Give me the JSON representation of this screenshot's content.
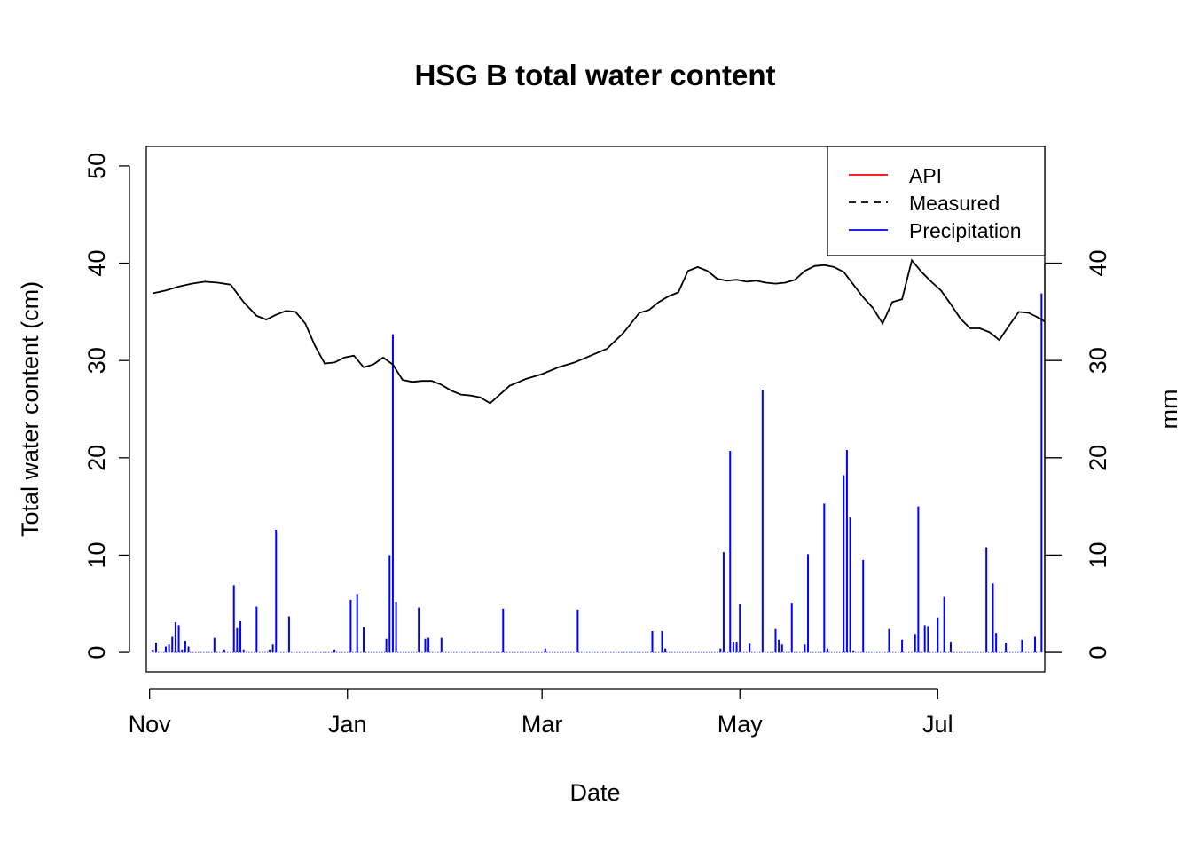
{
  "chart_data": {
    "type": "line",
    "title": "HSG B total water content",
    "xlabel": "Date",
    "ylabel": "Total water content (cm)",
    "y2label": "mm",
    "x_range": [
      "2019-10-31",
      "2020-08-03"
    ],
    "x_ticks": [
      {
        "label": "Nov",
        "date": "2019-11-01"
      },
      {
        "label": "Jan",
        "date": "2020-01-01"
      },
      {
        "label": "Mar",
        "date": "2020-03-01"
      },
      {
        "label": "May",
        "date": "2020-05-01"
      },
      {
        "label": "Jul",
        "date": "2020-07-01"
      }
    ],
    "ylim": [
      -2,
      52
    ],
    "y_ticks": [
      0,
      10,
      20,
      30,
      40,
      50
    ],
    "y2lim": [
      -2,
      52
    ],
    "y2_ticks": [
      0,
      10,
      20,
      30,
      40
    ],
    "grid": false,
    "legend": {
      "position": "top-right",
      "entries": [
        {
          "label": "API",
          "color": "#ff0000",
          "style": "solid"
        },
        {
          "label": "Measured",
          "color": "#000000",
          "style": "dashed"
        },
        {
          "label": "Precipitation",
          "color": "#0000ff",
          "style": "solid"
        }
      ]
    },
    "series": [
      {
        "name": "Measured",
        "axis": "left",
        "color": "#000000",
        "x": [
          "2019-11-02",
          "2019-11-06",
          "2019-11-10",
          "2019-11-14",
          "2019-11-18",
          "2019-11-22",
          "2019-11-26",
          "2019-11-30",
          "2019-12-04",
          "2019-12-07",
          "2019-12-10",
          "2019-12-13",
          "2019-12-16",
          "2019-12-19",
          "2019-12-22",
          "2019-12-25",
          "2019-12-28",
          "2019-12-31",
          "2020-01-03",
          "2020-01-06",
          "2020-01-09",
          "2020-01-12",
          "2020-01-15",
          "2020-01-18",
          "2020-01-21",
          "2020-01-24",
          "2020-01-27",
          "2020-01-30",
          "2020-02-02",
          "2020-02-05",
          "2020-02-08",
          "2020-02-11",
          "2020-02-14",
          "2020-02-17",
          "2020-02-20",
          "2020-02-25",
          "2020-03-01",
          "2020-03-06",
          "2020-03-11",
          "2020-03-16",
          "2020-03-21",
          "2020-03-26",
          "2020-03-31",
          "2020-04-03",
          "2020-04-06",
          "2020-04-09",
          "2020-04-12",
          "2020-04-15",
          "2020-04-18",
          "2020-04-21",
          "2020-04-24",
          "2020-04-27",
          "2020-04-30",
          "2020-05-03",
          "2020-05-06",
          "2020-05-09",
          "2020-05-12",
          "2020-05-15",
          "2020-05-18",
          "2020-05-21",
          "2020-05-24",
          "2020-05-27",
          "2020-05-30",
          "2020-06-02",
          "2020-06-05",
          "2020-06-08",
          "2020-06-11",
          "2020-06-14",
          "2020-06-17",
          "2020-06-20",
          "2020-06-23",
          "2020-06-26",
          "2020-06-29",
          "2020-07-02",
          "2020-07-05",
          "2020-07-08",
          "2020-07-11",
          "2020-07-14",
          "2020-07-17",
          "2020-07-20",
          "2020-07-23",
          "2020-07-26",
          "2020-07-29",
          "2020-08-01",
          "2020-08-03"
        ],
        "y": [
          36.9,
          37.2,
          37.6,
          37.9,
          38.1,
          38.0,
          37.8,
          36.0,
          34.6,
          34.2,
          34.7,
          35.1,
          35.0,
          33.8,
          31.5,
          29.7,
          29.8,
          30.3,
          30.5,
          29.3,
          29.6,
          30.3,
          29.6,
          28.0,
          27.8,
          27.9,
          27.9,
          27.5,
          26.9,
          26.5,
          26.4,
          26.2,
          25.6,
          26.5,
          27.4,
          28.1,
          28.6,
          29.3,
          29.8,
          30.5,
          31.2,
          32.8,
          34.9,
          35.2,
          36.0,
          36.6,
          37.0,
          39.2,
          39.6,
          39.2,
          38.4,
          38.2,
          38.3,
          38.1,
          38.2,
          38.0,
          37.9,
          38.0,
          38.3,
          39.2,
          39.7,
          39.8,
          39.6,
          39.1,
          37.8,
          36.5,
          35.4,
          33.8,
          36.0,
          36.3,
          40.3,
          39.1,
          38.1,
          37.2,
          35.8,
          34.3,
          33.3,
          33.3,
          32.9,
          32.1,
          33.6,
          35.0,
          34.9,
          34.4,
          34.0
        ]
      },
      {
        "name": "Precipitation",
        "axis": "right",
        "color": "#0000ff",
        "x": [
          "2019-11-02",
          "2019-11-03",
          "2019-11-06",
          "2019-11-07",
          "2019-11-08",
          "2019-11-09",
          "2019-11-10",
          "2019-11-11",
          "2019-11-12",
          "2019-11-13",
          "2019-11-21",
          "2019-11-24",
          "2019-11-27",
          "2019-11-28",
          "2019-11-29",
          "2019-11-30",
          "2019-12-04",
          "2019-12-08",
          "2019-12-09",
          "2019-12-10",
          "2019-12-14",
          "2019-12-28",
          "2020-01-02",
          "2020-01-04",
          "2020-01-06",
          "2020-01-13",
          "2020-01-14",
          "2020-01-15",
          "2020-01-16",
          "2020-01-23",
          "2020-01-25",
          "2020-01-26",
          "2020-01-30",
          "2020-02-18",
          "2020-03-02",
          "2020-03-12",
          "2020-04-04",
          "2020-04-07",
          "2020-04-08",
          "2020-04-25",
          "2020-04-26",
          "2020-04-28",
          "2020-04-29",
          "2020-04-30",
          "2020-05-01",
          "2020-05-04",
          "2020-05-08",
          "2020-05-12",
          "2020-05-13",
          "2020-05-14",
          "2020-05-17",
          "2020-05-21",
          "2020-05-22",
          "2020-05-27",
          "2020-05-28",
          "2020-06-02",
          "2020-06-03",
          "2020-06-04",
          "2020-06-05",
          "2020-06-08",
          "2020-06-16",
          "2020-06-20",
          "2020-06-24",
          "2020-06-25",
          "2020-06-27",
          "2020-06-28",
          "2020-07-01",
          "2020-07-03",
          "2020-07-05",
          "2020-07-16",
          "2020-07-18",
          "2020-07-19",
          "2020-07-22",
          "2020-07-27",
          "2020-07-31",
          "2020-08-02"
        ],
        "values": [
          0.3,
          1.0,
          0.6,
          0.8,
          1.6,
          3.1,
          2.8,
          0.3,
          1.2,
          0.6,
          1.5,
          0.3,
          6.9,
          2.5,
          3.2,
          0.3,
          4.7,
          0.3,
          0.8,
          12.6,
          3.7,
          0.3,
          5.4,
          6.0,
          2.6,
          1.4,
          10.0,
          32.7,
          5.2,
          4.6,
          1.4,
          1.5,
          1.5,
          4.5,
          0.4,
          4.4,
          2.2,
          2.2,
          0.4,
          0.4,
          10.3,
          20.7,
          1.1,
          1.1,
          5.0,
          0.9,
          27.0,
          2.4,
          1.3,
          0.8,
          5.1,
          0.8,
          10.1,
          15.3,
          0.4,
          18.2,
          20.8,
          13.9,
          0.2,
          9.5,
          2.4,
          1.3,
          1.9,
          15.0,
          2.8,
          2.7,
          3.6,
          5.7,
          1.1,
          10.8,
          7.1,
          2.0,
          1.0,
          1.3,
          1.6,
          36.9
        ]
      }
    ]
  }
}
